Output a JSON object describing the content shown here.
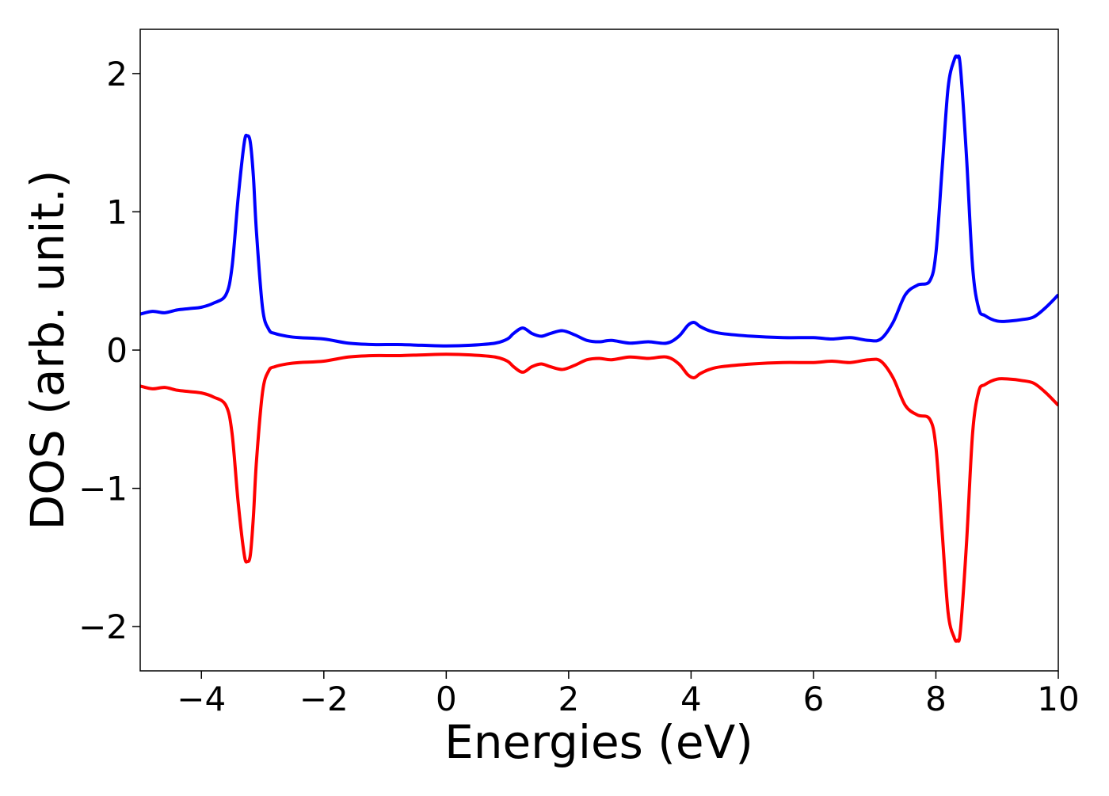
{
  "chart_data": {
    "type": "line",
    "xlabel": "Energies (eV)",
    "ylabel": "DOS (arb. unit.)",
    "xlim": [
      -5,
      10
    ],
    "ylim": [
      -2.32,
      2.32
    ],
    "x_ticks": [
      -4,
      -2,
      0,
      2,
      4,
      6,
      8,
      10
    ],
    "x_tick_labels": [
      "−4",
      "−2",
      "0",
      "2",
      "4",
      "6",
      "8",
      "10"
    ],
    "y_ticks": [
      -2,
      -1,
      0,
      1,
      2
    ],
    "y_tick_labels": [
      "−2",
      "−1",
      "0",
      "1",
      "2"
    ],
    "grid": false,
    "legend": "none",
    "series": [
      {
        "color": "#0000ff",
        "x": [
          -5.0,
          -4.8,
          -4.6,
          -4.4,
          -4.2,
          -4.0,
          -3.8,
          -3.6,
          -3.5,
          -3.4,
          -3.3,
          -3.25,
          -3.2,
          -3.15,
          -3.1,
          -3.0,
          -2.9,
          -2.8,
          -2.6,
          -2.4,
          -2.0,
          -1.6,
          -1.2,
          -0.8,
          -0.4,
          0.0,
          0.4,
          0.8,
          1.0,
          1.1,
          1.25,
          1.4,
          1.55,
          1.7,
          1.9,
          2.1,
          2.3,
          2.5,
          2.7,
          3.0,
          3.3,
          3.6,
          3.8,
          3.95,
          4.05,
          4.15,
          4.3,
          4.5,
          5.0,
          5.5,
          6.0,
          6.3,
          6.6,
          6.9,
          7.1,
          7.3,
          7.5,
          7.7,
          7.9,
          8.0,
          8.1,
          8.2,
          8.3,
          8.35,
          8.4,
          8.5,
          8.6,
          8.7,
          8.8,
          9.0,
          9.2,
          9.4,
          9.6,
          9.8,
          10.0
        ],
        "y": [
          0.26,
          0.28,
          0.27,
          0.29,
          0.3,
          0.31,
          0.34,
          0.4,
          0.6,
          1.1,
          1.5,
          1.55,
          1.5,
          1.25,
          0.85,
          0.3,
          0.15,
          0.12,
          0.1,
          0.09,
          0.08,
          0.05,
          0.04,
          0.04,
          0.035,
          0.03,
          0.035,
          0.05,
          0.08,
          0.12,
          0.16,
          0.12,
          0.1,
          0.12,
          0.14,
          0.11,
          0.07,
          0.06,
          0.07,
          0.05,
          0.06,
          0.05,
          0.1,
          0.18,
          0.2,
          0.17,
          0.14,
          0.12,
          0.1,
          0.09,
          0.09,
          0.08,
          0.09,
          0.07,
          0.08,
          0.2,
          0.4,
          0.47,
          0.5,
          0.7,
          1.3,
          1.9,
          2.1,
          2.12,
          2.05,
          1.4,
          0.6,
          0.3,
          0.25,
          0.21,
          0.21,
          0.22,
          0.24,
          0.31,
          0.4
        ]
      },
      {
        "color": "#ff0000",
        "x": [
          -5.0,
          -4.8,
          -4.6,
          -4.4,
          -4.2,
          -4.0,
          -3.8,
          -3.6,
          -3.5,
          -3.4,
          -3.3,
          -3.25,
          -3.2,
          -3.15,
          -3.1,
          -3.0,
          -2.9,
          -2.8,
          -2.6,
          -2.4,
          -2.0,
          -1.6,
          -1.2,
          -0.8,
          -0.4,
          0.0,
          0.4,
          0.8,
          1.0,
          1.1,
          1.25,
          1.4,
          1.55,
          1.7,
          1.9,
          2.1,
          2.3,
          2.5,
          2.7,
          3.0,
          3.3,
          3.6,
          3.8,
          3.95,
          4.05,
          4.15,
          4.3,
          4.5,
          5.0,
          5.5,
          6.0,
          6.3,
          6.6,
          6.9,
          7.1,
          7.3,
          7.5,
          7.7,
          7.9,
          8.0,
          8.1,
          8.2,
          8.3,
          8.35,
          8.4,
          8.5,
          8.6,
          8.7,
          8.8,
          9.0,
          9.2,
          9.4,
          9.6,
          9.8,
          10.0
        ],
        "y": [
          -0.26,
          -0.28,
          -0.27,
          -0.29,
          -0.3,
          -0.31,
          -0.34,
          -0.4,
          -0.6,
          -1.1,
          -1.48,
          -1.53,
          -1.48,
          -1.2,
          -0.8,
          -0.3,
          -0.15,
          -0.12,
          -0.1,
          -0.09,
          -0.08,
          -0.05,
          -0.04,
          -0.04,
          -0.035,
          -0.03,
          -0.035,
          -0.05,
          -0.08,
          -0.12,
          -0.16,
          -0.12,
          -0.1,
          -0.12,
          -0.14,
          -0.11,
          -0.07,
          -0.06,
          -0.07,
          -0.05,
          -0.06,
          -0.05,
          -0.1,
          -0.18,
          -0.2,
          -0.17,
          -0.14,
          -0.12,
          -0.1,
          -0.09,
          -0.09,
          -0.08,
          -0.09,
          -0.07,
          -0.08,
          -0.2,
          -0.4,
          -0.47,
          -0.5,
          -0.7,
          -1.3,
          -1.9,
          -2.08,
          -2.1,
          -2.03,
          -1.4,
          -0.6,
          -0.3,
          -0.25,
          -0.21,
          -0.21,
          -0.22,
          -0.24,
          -0.31,
          -0.4
        ]
      }
    ]
  }
}
